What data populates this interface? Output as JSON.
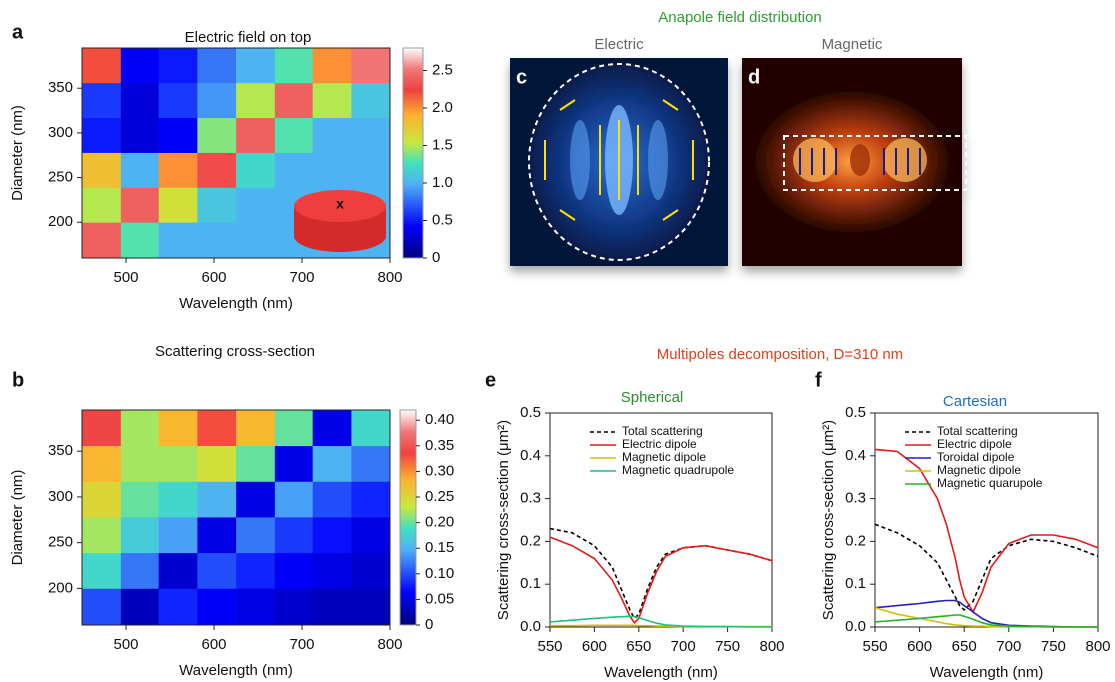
{
  "header": {
    "anapole_title": "Anapole field distribution",
    "multipoles_title": "Multipoles decomposition, D=310 nm"
  },
  "chart_data": [
    {
      "type": "heatmap",
      "letter": "a",
      "title": "Electric field on top",
      "xlabel": "Wavelength (nm)",
      "ylabel": "Diameter (nm)",
      "inset_label": "x",
      "xlim": [
        450,
        800
      ],
      "xticks": [
        500,
        600,
        700,
        800
      ],
      "ylim": [
        160,
        395
      ],
      "yticks": [
        200,
        250,
        300,
        350
      ],
      "x": [
        472,
        516,
        559,
        603,
        647,
        691,
        734,
        778
      ],
      "y": [
        375,
        336,
        297,
        258,
        219,
        180
      ],
      "z": [
        [
          2.2,
          0.4,
          0.5,
          0.8,
          1.0,
          1.3,
          2.0,
          2.5
        ],
        [
          0.6,
          0.3,
          0.6,
          0.9,
          1.5,
          2.4,
          1.5,
          1.1
        ],
        [
          0.5,
          0.3,
          0.4,
          1.4,
          2.4,
          1.3,
          1.0,
          1.0
        ],
        [
          1.8,
          1.0,
          2.0,
          2.3,
          1.2,
          1.0,
          1.0,
          1.0
        ],
        [
          1.5,
          2.4,
          1.6,
          1.1,
          1.0,
          1.0,
          1.0,
          1.0
        ],
        [
          2.4,
          1.3,
          1.0,
          1.0,
          1.0,
          1.0,
          1.0,
          1.0
        ]
      ],
      "zlim": [
        0,
        2.8
      ],
      "zticks": [
        0,
        0.5,
        {
          "value": 1.0,
          "label": "1.0"
        },
        1.5,
        {
          "value": 2.0,
          "label": "2.0"
        },
        2.5
      ]
    },
    {
      "type": "heatmap",
      "letter": "b",
      "title": "Scattering cross-section",
      "xlabel": "Wavelength (nm)",
      "ylabel": "Diameter (nm)",
      "xlim": [
        450,
        800
      ],
      "xticks": [
        500,
        600,
        700,
        800
      ],
      "ylim": [
        160,
        395
      ],
      "yticks": [
        200,
        250,
        300,
        350
      ],
      "x": [
        472,
        516,
        559,
        603,
        647,
        691,
        734,
        778
      ],
      "y": [
        375,
        336,
        297,
        258,
        219,
        180
      ],
      "z": [
        [
          0.34,
          0.22,
          0.28,
          0.33,
          0.28,
          0.2,
          0.05,
          0.18
        ],
        [
          0.28,
          0.22,
          0.22,
          0.24,
          0.2,
          0.05,
          0.15,
          0.12
        ],
        [
          0.25,
          0.2,
          0.18,
          0.15,
          0.05,
          0.14,
          0.1,
          0.08
        ],
        [
          0.22,
          0.17,
          0.14,
          0.05,
          0.12,
          0.09,
          0.07,
          0.05
        ],
        [
          0.18,
          0.12,
          0.04,
          0.1,
          0.08,
          0.06,
          0.05,
          0.04
        ],
        [
          0.1,
          0.03,
          0.08,
          0.06,
          0.05,
          0.04,
          0.03,
          0.03
        ]
      ],
      "zlim": [
        0,
        0.42
      ],
      "zticks": [
        0,
        0.05,
        {
          "value": 0.1,
          "label": "0.10"
        },
        0.15,
        {
          "value": 0.2,
          "label": "0.20"
        },
        0.25,
        {
          "value": 0.3,
          "label": "0.30"
        },
        0.35,
        {
          "value": 0.4,
          "label": "0.40"
        }
      ]
    },
    {
      "type": "image",
      "letter": "c",
      "title": "Electric"
    },
    {
      "type": "image",
      "letter": "d",
      "title": "Magnetic"
    },
    {
      "type": "line",
      "letter": "e",
      "title": "Spherical",
      "title_color": "#2e8b2e",
      "xlabel": "Wavelength (nm)",
      "ylabel": "Scattering cross-section (μm²)",
      "xlim": [
        550,
        800
      ],
      "xticks": [
        550,
        600,
        650,
        700,
        750,
        800
      ],
      "ylim": [
        0,
        0.5
      ],
      "yticks": [
        {
          "value": 0,
          "label": "0.0"
        },
        0.1,
        0.2,
        0.3,
        0.4,
        0.5
      ],
      "x": [
        550,
        575,
        600,
        620,
        630,
        640,
        645,
        650,
        660,
        670,
        680,
        700,
        725,
        750,
        775,
        800
      ],
      "series": [
        {
          "name": "Total scattering",
          "color": "#000000",
          "dashed": true,
          "values": [
            0.23,
            0.22,
            0.19,
            0.14,
            0.09,
            0.04,
            0.02,
            0.03,
            0.09,
            0.14,
            0.17,
            0.185,
            0.19,
            0.18,
            0.17,
            0.155
          ]
        },
        {
          "name": "Electric dipole",
          "color": "#e31a1c",
          "values": [
            0.21,
            0.19,
            0.16,
            0.11,
            0.07,
            0.025,
            0.01,
            0.02,
            0.08,
            0.13,
            0.165,
            0.185,
            0.19,
            0.18,
            0.17,
            0.155
          ]
        },
        {
          "name": "Magnetic dipole",
          "color": "#d4c000",
          "values": [
            0.003,
            0.003,
            0.004,
            0.004,
            0.004,
            0.004,
            0.004,
            0.003,
            0.003,
            0.002,
            0.002,
            0.001,
            0.001,
            0.001,
            0.001,
            0.001
          ]
        },
        {
          "name": "Magnetic quadrupole",
          "color": "#1fc07a",
          "values": [
            0.012,
            0.016,
            0.02,
            0.023,
            0.024,
            0.025,
            0.024,
            0.022,
            0.015,
            0.009,
            0.005,
            0.002,
            0.001,
            0.001,
            0,
            0
          ]
        }
      ]
    },
    {
      "type": "line",
      "letter": "f",
      "title": "Cartesian",
      "title_color": "#1f6fc0",
      "xlabel": "Wavelength (nm)",
      "ylabel": "Scattering cross-section (μm²)",
      "xlim": [
        550,
        800
      ],
      "xticks": [
        550,
        600,
        650,
        700,
        750,
        800
      ],
      "ylim": [
        0,
        0.5
      ],
      "yticks": [
        {
          "value": 0,
          "label": "0.0"
        },
        0.1,
        0.2,
        0.3,
        0.4,
        0.5
      ],
      "x": [
        550,
        575,
        600,
        620,
        630,
        640,
        645,
        650,
        660,
        670,
        680,
        700,
        725,
        750,
        775,
        800
      ],
      "series": [
        {
          "name": "Total scattering",
          "color": "#000000",
          "dashed": true,
          "values": [
            0.24,
            0.22,
            0.19,
            0.15,
            0.11,
            0.07,
            0.05,
            0.04,
            0.06,
            0.11,
            0.16,
            0.19,
            0.205,
            0.2,
            0.185,
            0.165
          ]
        },
        {
          "name": "Electric dipole",
          "color": "#e31a1c",
          "values": [
            0.415,
            0.41,
            0.37,
            0.3,
            0.24,
            0.16,
            0.11,
            0.07,
            0.035,
            0.08,
            0.14,
            0.195,
            0.215,
            0.215,
            0.205,
            0.185
          ]
        },
        {
          "name": "Toroidal dipole",
          "color": "#1f1fc8",
          "values": [
            0.045,
            0.05,
            0.055,
            0.06,
            0.062,
            0.062,
            0.058,
            0.05,
            0.035,
            0.02,
            0.01,
            0.004,
            0.002,
            0.001,
            0,
            0
          ]
        },
        {
          "name": "Magnetic dipole",
          "color": "#d4c000",
          "values": [
            0.045,
            0.03,
            0.02,
            0.012,
            0.008,
            0.005,
            0.004,
            0.003,
            0.002,
            0.002,
            0.001,
            0.001,
            0.001,
            0,
            0,
            0
          ]
        },
        {
          "name": "Magnetic quarupole",
          "color": "#2ab02a",
          "values": [
            0.012,
            0.016,
            0.02,
            0.024,
            0.026,
            0.028,
            0.028,
            0.025,
            0.018,
            0.01,
            0.005,
            0.002,
            0.001,
            0,
            0,
            0
          ]
        }
      ]
    }
  ]
}
